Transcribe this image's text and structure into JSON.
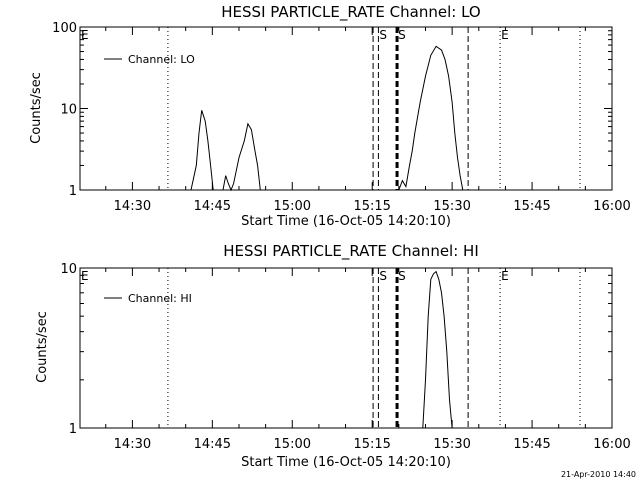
{
  "footer_timestamp": "21-Apr-2010 14:40",
  "chart_data": [
    {
      "type": "line",
      "title": "HESSI PARTICLE_RATE Channel: LO",
      "ylabel": "Counts/sec",
      "xlabel": "Start Time (16-Oct-05 14:20:10)",
      "yscale": "log",
      "ylim": [
        1,
        100
      ],
      "xlim": [
        "14:20:10",
        "16:00:00"
      ],
      "x_ticks": [
        "14:30",
        "14:45",
        "15:00",
        "15:15",
        "15:30",
        "15:45",
        "16:00"
      ],
      "y_ticks": [
        "1",
        "10",
        "100"
      ],
      "legend": {
        "position": "top-left",
        "entries": [
          "Channel: LO"
        ]
      },
      "markers": [
        {
          "time": "14:36:40",
          "style": "dotted",
          "label": ""
        },
        {
          "time": "14:20:10",
          "style": "none",
          "label": "E"
        },
        {
          "time": "15:15:10",
          "style": "dashed",
          "label": ""
        },
        {
          "time": "15:16:10",
          "style": "dashed",
          "label": "S"
        },
        {
          "time": "15:19:40",
          "style": "dashed-thick",
          "label": "S"
        },
        {
          "time": "15:33:00",
          "style": "dashed",
          "label": ""
        },
        {
          "time": "15:39:00",
          "style": "dotted",
          "label": "E"
        },
        {
          "time": "15:54:00",
          "style": "dotted",
          "label": ""
        }
      ],
      "series": [
        {
          "name": "Channel: LO",
          "segments": [
            {
              "x": [
                "14:41:00",
                "14:42:00",
                "14:42:30",
                "14:43:00",
                "14:43:40",
                "14:44:10",
                "14:44:40",
                "14:45:10"
              ],
              "y": [
                1,
                2,
                5,
                9.5,
                7,
                4,
                2,
                1
              ]
            },
            {
              "x": [
                "14:47:00",
                "14:47:30",
                "14:48:00",
                "14:48:30",
                "14:49:00",
                "14:50:00",
                "14:51:00",
                "14:51:40",
                "14:52:20",
                "14:53:00",
                "14:53:30",
                "14:54:00"
              ],
              "y": [
                1,
                1.5,
                1.2,
                1,
                1.2,
                2.5,
                4,
                6.5,
                5.5,
                3,
                2,
                1
              ]
            },
            {
              "x": [
                "15:20:00",
                "15:20:40",
                "15:21:20",
                "15:22:00",
                "15:22:30",
                "15:23:00",
                "15:24:00",
                "15:25:00",
                "15:26:00",
                "15:27:00",
                "15:28:00",
                "15:28:40",
                "15:29:20",
                "15:30:00",
                "15:30:30",
                "15:31:00",
                "15:31:30",
                "15:32:00"
              ],
              "y": [
                1,
                1.3,
                1.1,
                2,
                3,
                5,
                12,
                25,
                45,
                58,
                52,
                40,
                25,
                12,
                5,
                2.5,
                1.5,
                1
              ]
            }
          ]
        }
      ]
    },
    {
      "type": "line",
      "title": "HESSI PARTICLE_RATE Channel: HI",
      "ylabel": "Counts/sec",
      "xlabel": "Start Time (16-Oct-05 14:20:10)",
      "yscale": "log",
      "ylim": [
        1,
        10
      ],
      "xlim": [
        "14:20:10",
        "16:00:00"
      ],
      "x_ticks": [
        "14:30",
        "14:45",
        "15:00",
        "15:15",
        "15:30",
        "15:45",
        "16:00"
      ],
      "y_ticks": [
        "1",
        "10"
      ],
      "legend": {
        "position": "top-left",
        "entries": [
          "Channel: HI"
        ]
      },
      "markers": [
        {
          "time": "14:36:40",
          "style": "dotted",
          "label": ""
        },
        {
          "time": "14:20:10",
          "style": "none",
          "label": "E"
        },
        {
          "time": "15:15:10",
          "style": "dashed",
          "label": ""
        },
        {
          "time": "15:16:10",
          "style": "dashed",
          "label": "S"
        },
        {
          "time": "15:19:40",
          "style": "dashed-thick",
          "label": "S"
        },
        {
          "time": "15:33:00",
          "style": "dashed",
          "label": ""
        },
        {
          "time": "15:39:00",
          "style": "dotted",
          "label": "E"
        },
        {
          "time": "15:54:00",
          "style": "dotted",
          "label": ""
        }
      ],
      "series": [
        {
          "name": "Channel: HI",
          "segments": [
            {
              "x": [
                "15:24:30",
                "15:25:00",
                "15:25:30",
                "15:26:00",
                "15:26:30",
                "15:27:00",
                "15:27:30",
                "15:28:00",
                "15:28:30",
                "15:29:00",
                "15:29:30",
                "15:30:00"
              ],
              "y": [
                1,
                2,
                5,
                8.5,
                9.2,
                9.5,
                8.5,
                7,
                5,
                3,
                1.5,
                1
              ]
            }
          ]
        }
      ]
    }
  ]
}
